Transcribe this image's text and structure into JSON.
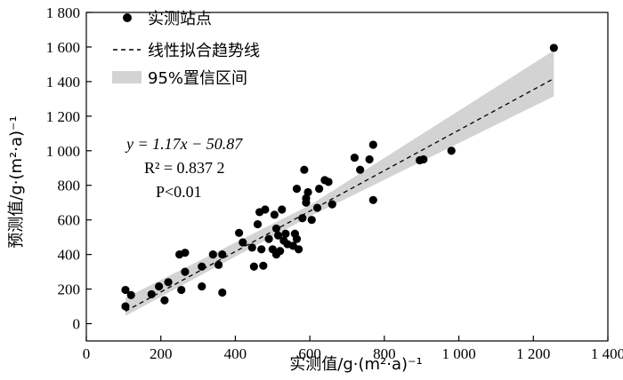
{
  "chart_data": {
    "type": "scatter",
    "xlabel": "实测值/g·(m²·a)⁻¹",
    "ylabel": "预测值/g·(m²·a)⁻¹",
    "xlim": [
      0,
      1400
    ],
    "ylim": [
      -100,
      1800
    ],
    "xticks": [
      0,
      200,
      400,
      600,
      800,
      1000,
      1200,
      1400
    ],
    "yticks": [
      0,
      200,
      400,
      600,
      800,
      1000,
      1200,
      1400,
      1600,
      1800
    ],
    "xtick_labels": [
      "0",
      "200",
      "400",
      "600",
      "800",
      "1 000",
      "1 200",
      "1 400"
    ],
    "ytick_labels": [
      "0",
      "200",
      "400",
      "600",
      "800",
      "1 000",
      "1 200",
      "1 400",
      "1 600",
      "1 800"
    ],
    "grid": false,
    "legend_position": "top-left",
    "legend": [
      {
        "label": "实测站点",
        "kind": "marker"
      },
      {
        "label": "线性拟合趋势线",
        "kind": "dashed-line"
      },
      {
        "label": "95%置信区间",
        "kind": "band"
      }
    ],
    "annotations": {
      "equation": "y = 1.17x − 50.87",
      "r2": "R² = 0.837 2",
      "p": "P<0.01"
    },
    "fit": {
      "slope": 1.17,
      "intercept": -50.87,
      "x_range": [
        105,
        1255
      ]
    },
    "ci_band": {
      "x": [
        105,
        600,
        1255
      ],
      "lower": [
        45,
        620,
        1315
      ],
      "upper": [
        150,
        685,
        1580
      ]
    },
    "points": [
      {
        "x": 105,
        "y": 195
      },
      {
        "x": 105,
        "y": 100
      },
      {
        "x": 120,
        "y": 165
      },
      {
        "x": 175,
        "y": 170
      },
      {
        "x": 195,
        "y": 215
      },
      {
        "x": 210,
        "y": 135
      },
      {
        "x": 220,
        "y": 240
      },
      {
        "x": 250,
        "y": 400
      },
      {
        "x": 255,
        "y": 195
      },
      {
        "x": 265,
        "y": 410
      },
      {
        "x": 265,
        "y": 300
      },
      {
        "x": 310,
        "y": 215
      },
      {
        "x": 310,
        "y": 330
      },
      {
        "x": 340,
        "y": 400
      },
      {
        "x": 355,
        "y": 340
      },
      {
        "x": 365,
        "y": 180
      },
      {
        "x": 365,
        "y": 400
      },
      {
        "x": 410,
        "y": 525
      },
      {
        "x": 420,
        "y": 470
      },
      {
        "x": 445,
        "y": 440
      },
      {
        "x": 450,
        "y": 330
      },
      {
        "x": 460,
        "y": 575
      },
      {
        "x": 465,
        "y": 645
      },
      {
        "x": 470,
        "y": 430
      },
      {
        "x": 475,
        "y": 335
      },
      {
        "x": 480,
        "y": 660
      },
      {
        "x": 490,
        "y": 490
      },
      {
        "x": 500,
        "y": 430
      },
      {
        "x": 505,
        "y": 630
      },
      {
        "x": 510,
        "y": 550
      },
      {
        "x": 510,
        "y": 400
      },
      {
        "x": 515,
        "y": 510
      },
      {
        "x": 520,
        "y": 420
      },
      {
        "x": 525,
        "y": 660
      },
      {
        "x": 530,
        "y": 480
      },
      {
        "x": 535,
        "y": 520
      },
      {
        "x": 540,
        "y": 460
      },
      {
        "x": 555,
        "y": 450
      },
      {
        "x": 560,
        "y": 520
      },
      {
        "x": 565,
        "y": 490
      },
      {
        "x": 565,
        "y": 780
      },
      {
        "x": 570,
        "y": 430
      },
      {
        "x": 580,
        "y": 610
      },
      {
        "x": 585,
        "y": 890
      },
      {
        "x": 590,
        "y": 700
      },
      {
        "x": 590,
        "y": 725
      },
      {
        "x": 595,
        "y": 760
      },
      {
        "x": 605,
        "y": 600
      },
      {
        "x": 620,
        "y": 670
      },
      {
        "x": 625,
        "y": 780
      },
      {
        "x": 640,
        "y": 830
      },
      {
        "x": 650,
        "y": 820
      },
      {
        "x": 660,
        "y": 690
      },
      {
        "x": 720,
        "y": 960
      },
      {
        "x": 735,
        "y": 890
      },
      {
        "x": 760,
        "y": 950
      },
      {
        "x": 770,
        "y": 1035
      },
      {
        "x": 770,
        "y": 715
      },
      {
        "x": 895,
        "y": 945
      },
      {
        "x": 905,
        "y": 950
      },
      {
        "x": 980,
        "y": 1000
      },
      {
        "x": 1255,
        "y": 1595
      }
    ]
  }
}
